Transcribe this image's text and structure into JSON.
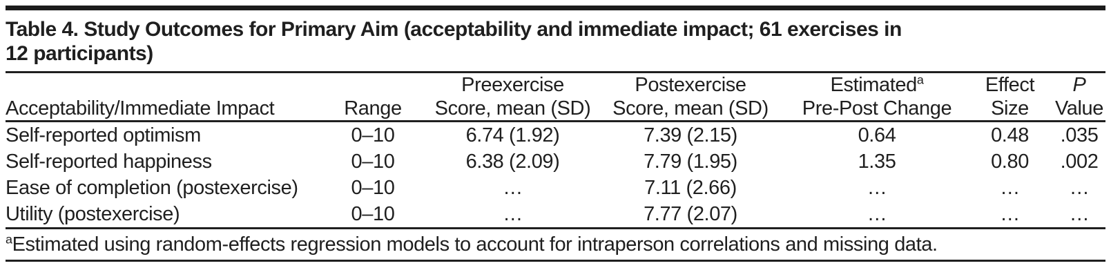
{
  "title": {
    "line1": "Table 4. Study Outcomes for Primary Aim (acceptability and immediate impact; 61 exercises in",
    "line2": "12 participants)"
  },
  "table": {
    "header": {
      "label": {
        "line1": "",
        "line2": "Acceptability/Immediate Impact"
      },
      "range": {
        "line1": "",
        "line2": "Range"
      },
      "pre": {
        "line1": "Preexercise",
        "line2": "Score, mean (SD)"
      },
      "post": {
        "line1": "Postexercise",
        "line2": "Score, mean (SD)"
      },
      "change": {
        "line1": "Estimated",
        "sup": "a",
        "line2": "Pre-Post Change"
      },
      "effect": {
        "line1": "Effect",
        "line2": "Size"
      },
      "p": {
        "line1": "P",
        "line2": "Value"
      }
    },
    "rows": [
      {
        "label": "Self-reported optimism",
        "range": "0–10",
        "pre": "6.74 (1.92)",
        "post": "7.39 (2.15)",
        "change": "0.64",
        "effect": "0.48",
        "p": ".035"
      },
      {
        "label": "Self-reported happiness",
        "range": "0–10",
        "pre": "6.38 (2.09)",
        "post": "7.79 (1.95)",
        "change": "1.35",
        "effect": "0.80",
        "p": ".002"
      },
      {
        "label": "Ease of completion (postexercise)",
        "range": "0–10",
        "pre": "…",
        "post": "7.11 (2.66)",
        "change": "…",
        "effect": "…",
        "p": "…"
      },
      {
        "label": "Utility (postexercise)",
        "range": "0–10",
        "pre": "…",
        "post": "7.77 (2.07)",
        "change": "…",
        "effect": "…",
        "p": "…"
      }
    ]
  },
  "footnote": {
    "marker": "a",
    "text": "Estimated using random-effects regression models to account for intraperson correlations and missing data."
  },
  "colors": {
    "text": "#1f1f1f",
    "rule": "#1f1f1f",
    "background": "#ffffff"
  }
}
